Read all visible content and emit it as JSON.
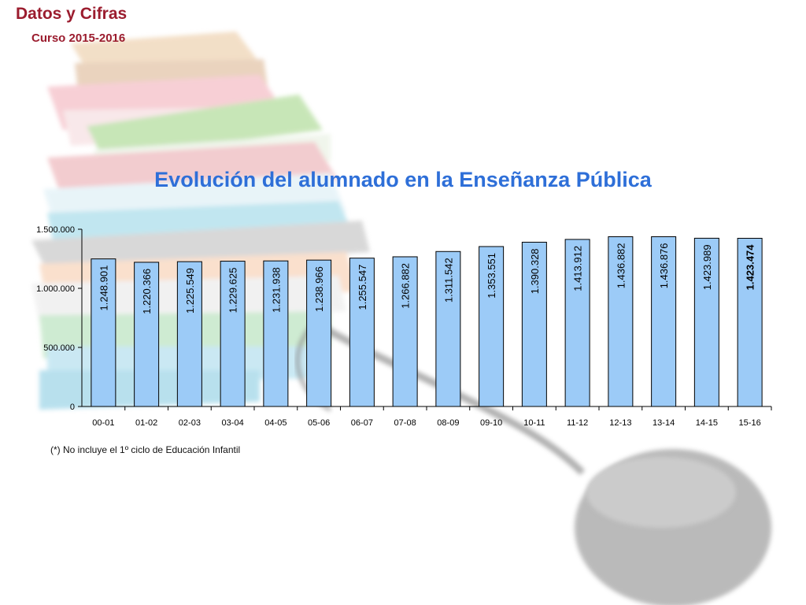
{
  "header": {
    "title": "Datos y Cifras",
    "subtitle": "Curso 2015-2016"
  },
  "chart_data": {
    "type": "bar",
    "title": "Evolución del alumnado en la Enseñanza Pública",
    "xlabel": "",
    "ylabel": "",
    "ylim": [
      0,
      1500000
    ],
    "yticks": [
      0,
      500000,
      1000000,
      1500000
    ],
    "ytick_labels": [
      "0",
      "500.000",
      "1.000.000",
      "1.500.000"
    ],
    "grid": false,
    "bar_color": "#9ccbf7",
    "categories": [
      "00-01",
      "01-02",
      "02-03",
      "03-04",
      "04-05",
      "05-06",
      "06-07",
      "07-08",
      "08-09",
      "09-10",
      "10-11",
      "11-12",
      "12-13",
      "13-14",
      "14-15",
      "15-16"
    ],
    "values": [
      1248901,
      1220366,
      1225549,
      1229625,
      1231938,
      1238966,
      1255547,
      1266882,
      1311542,
      1353551,
      1390328,
      1413912,
      1436882,
      1436876,
      1423989,
      1423474
    ],
    "value_labels": [
      "1.248.901",
      "1.220.366",
      "1.225.549",
      "1.229.625",
      "1.231.938",
      "1.238.966",
      "1.255.547",
      "1.266.882",
      "1.311.542",
      "1.353.551",
      "1.390.328",
      "1.413.912",
      "1.436.882",
      "1.436.876",
      "1.423.989",
      "1.423.474"
    ],
    "bold_last_label": true
  },
  "footnote": "(*) No incluye el 1º ciclo de Educación Infantil",
  "colors": {
    "header": "#9b1c2e",
    "title": "#2e6fd8"
  }
}
